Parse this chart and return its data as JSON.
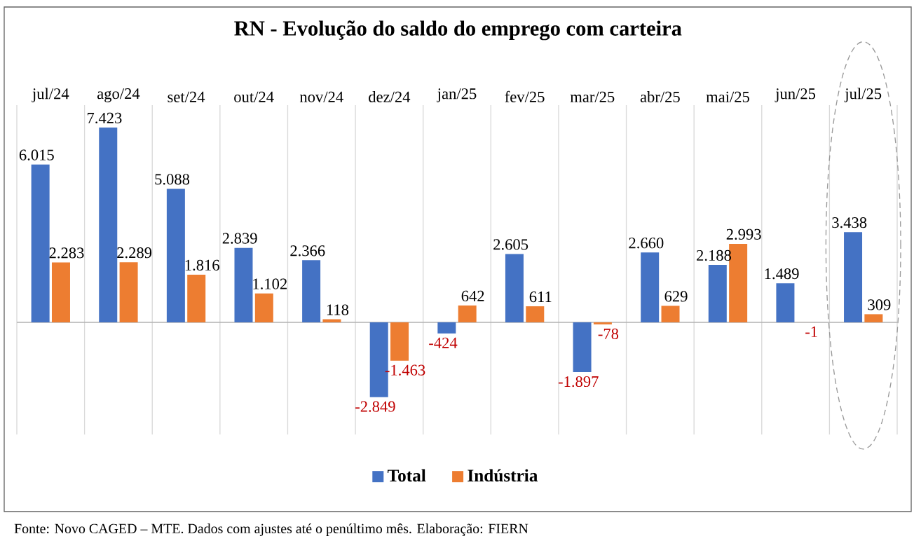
{
  "chart_data": {
    "type": "bar",
    "title": "RN - Evolução do saldo do emprego com carteira",
    "categories": [
      "jul/24",
      "ago/24",
      "set/24",
      "out/24",
      "nov/24",
      "dez/24",
      "jan/25",
      "fev/25",
      "mar/25",
      "abr/25",
      "mai/25",
      "jun/25",
      "jul/25"
    ],
    "series": [
      {
        "name": "Total",
        "color": "#4472c4",
        "values": [
          6015,
          7423,
          5088,
          2839,
          2366,
          -2849,
          -424,
          2605,
          -1897,
          2660,
          2188,
          1489,
          3438
        ],
        "value_labels": [
          "6.015",
          "7.423",
          "5.088",
          "2.839",
          "2.366",
          "-2.849",
          "-424",
          "2.605",
          "-1.897",
          "2.660",
          "2.188",
          "1.489",
          "3.438"
        ]
      },
      {
        "name": "Indústria",
        "color": "#ed7d31",
        "values": [
          2283,
          2289,
          1816,
          1102,
          118,
          -1463,
          642,
          611,
          -78,
          629,
          2993,
          -1,
          309
        ],
        "value_labels": [
          "2.283",
          "2.289",
          "1.816",
          "1.102",
          "118",
          "-1.463",
          "642",
          "611",
          "-78",
          "629",
          "2.993",
          "-1",
          "309"
        ]
      }
    ],
    "grid": "x",
    "legend": "bottom",
    "annotations": [
      "Fonte: Novo CAGED – MTE. Dados com ajustes até o penúltimo mês. Elaboração: FIERN"
    ]
  }
}
